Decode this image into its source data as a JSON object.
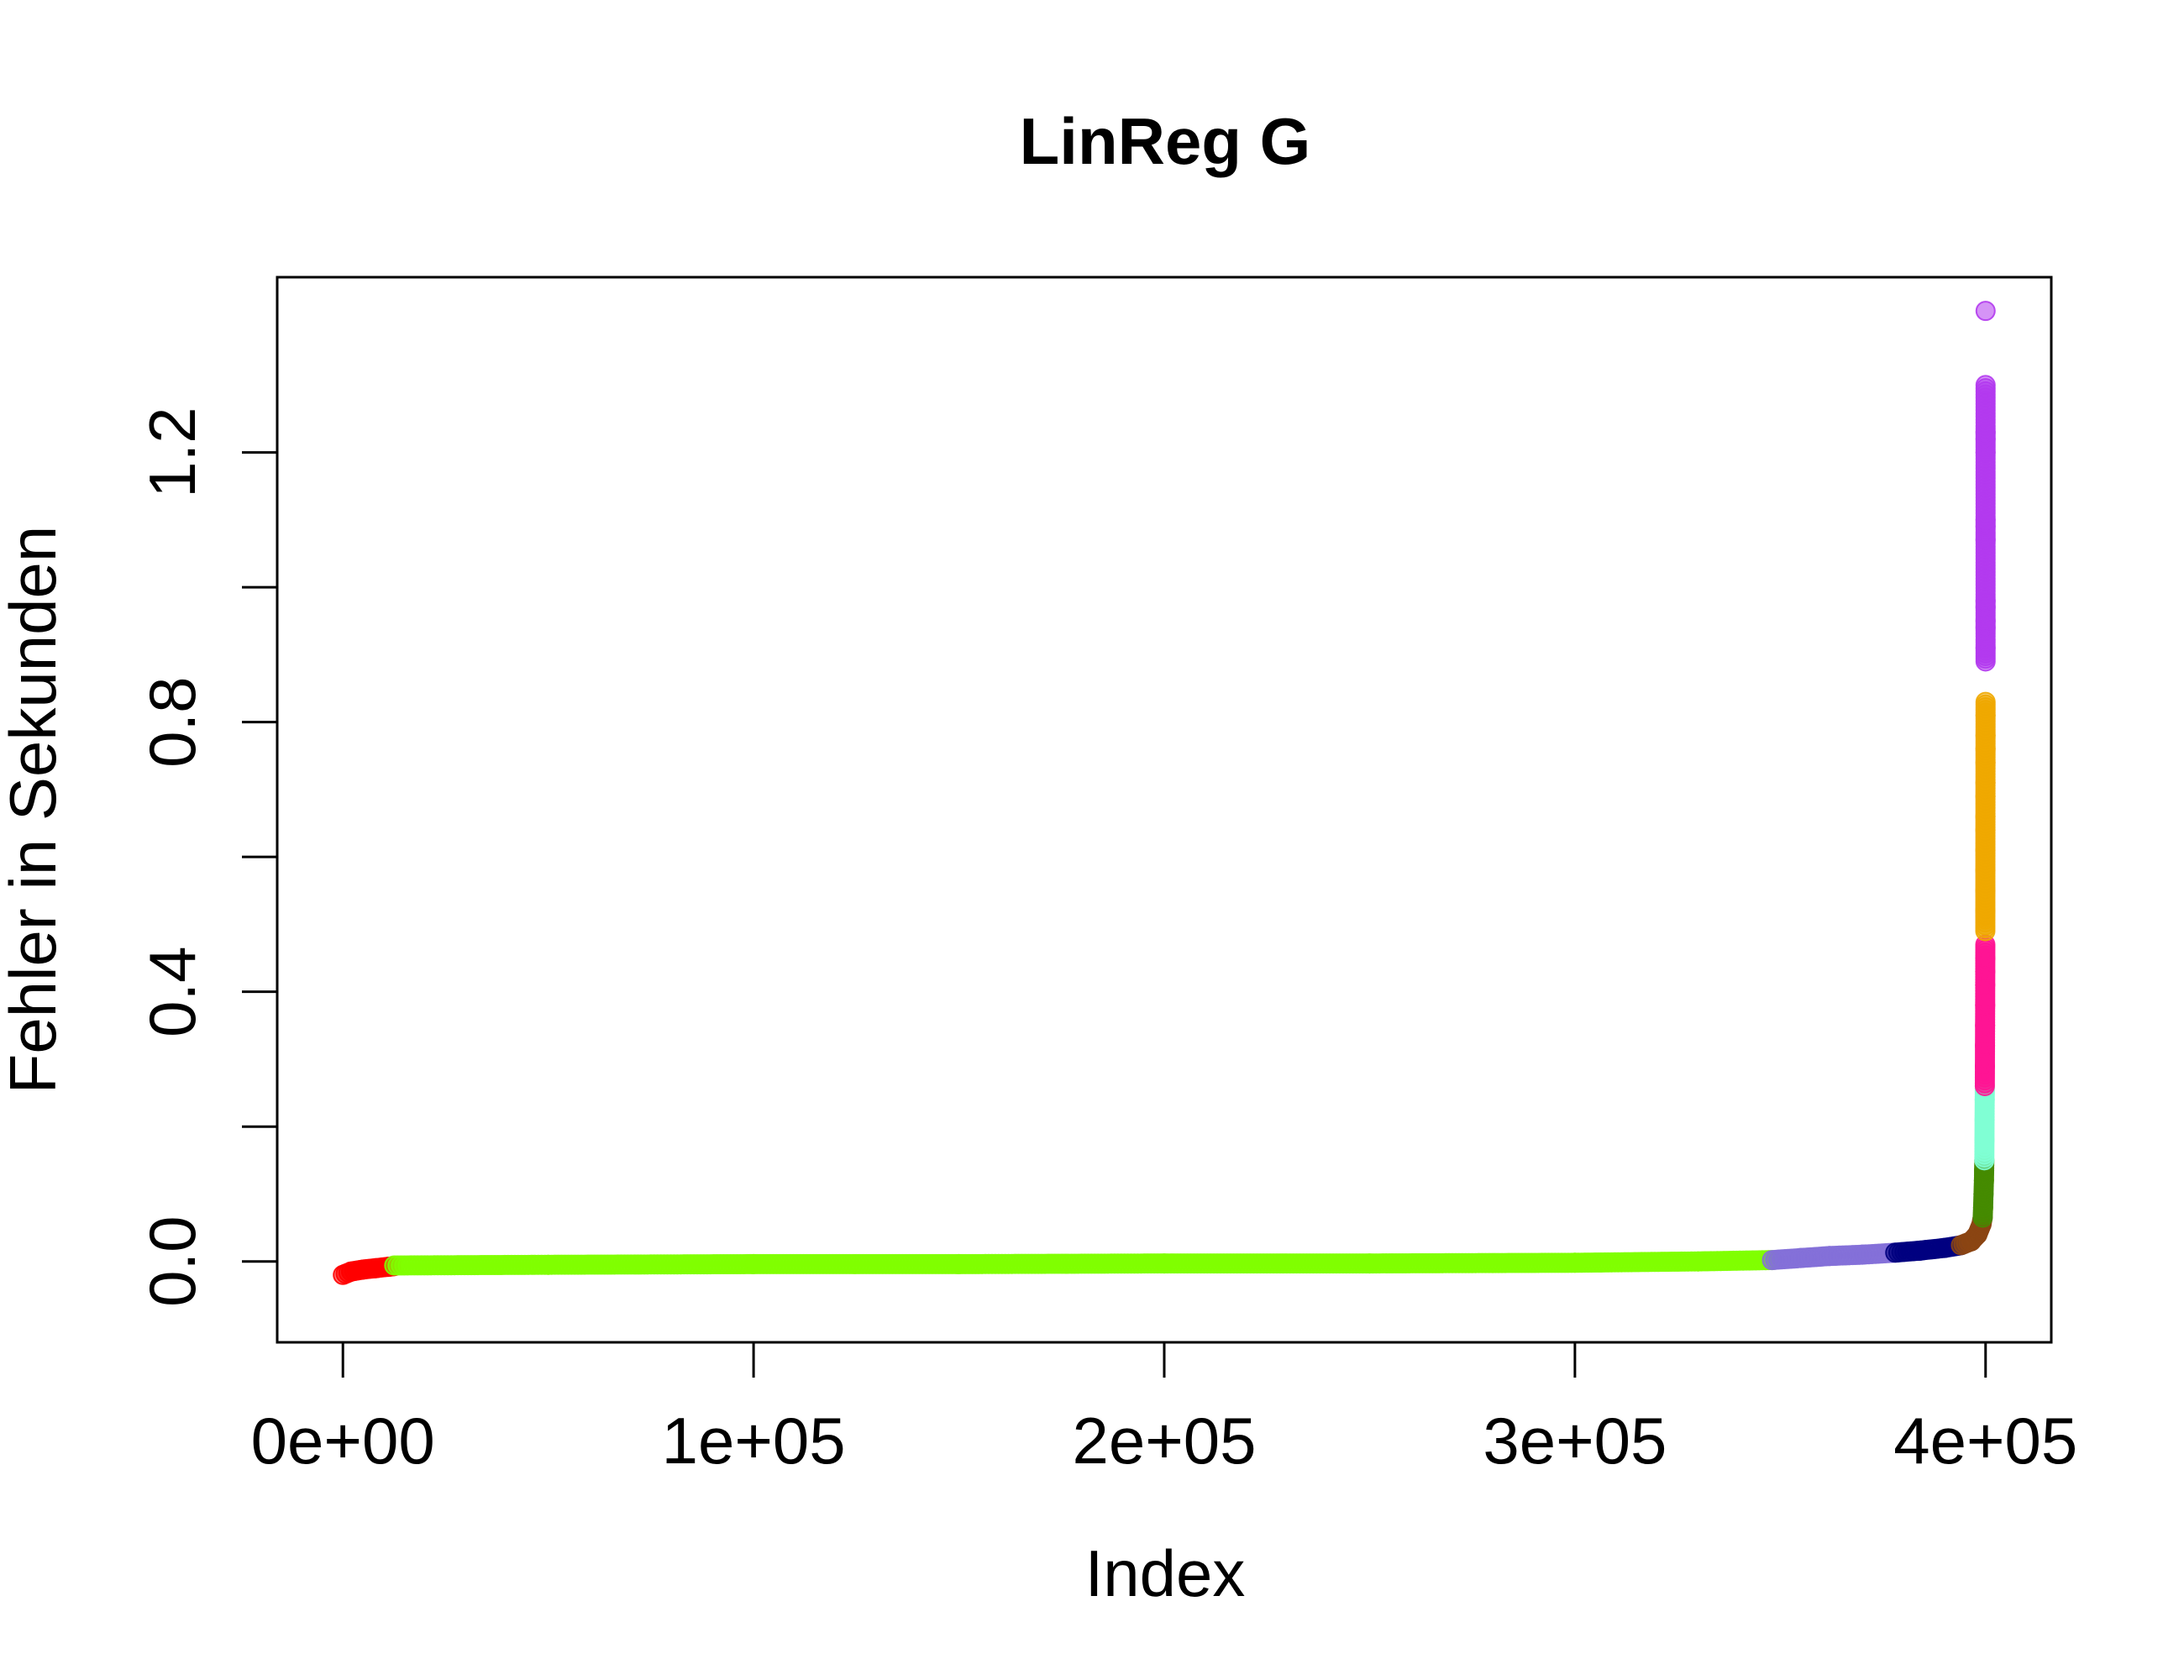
{
  "chart_data": {
    "type": "scatter",
    "title": "LinReg G",
    "xlabel": "Index",
    "ylabel": "Fehler in Sekunden",
    "xlim": [
      -16000,
      416000
    ],
    "ylim": [
      -0.12,
      1.46
    ],
    "xticks": [
      {
        "value": 0,
        "label": "0e+00"
      },
      {
        "value": 100000,
        "label": "1e+05"
      },
      {
        "value": 200000,
        "label": "2e+05"
      },
      {
        "value": 300000,
        "label": "3e+05"
      },
      {
        "value": 400000,
        "label": "4e+05"
      }
    ],
    "yticks": [
      {
        "value": 0.0,
        "label": "0.0"
      },
      {
        "value": 0.2,
        "label": ""
      },
      {
        "value": 0.4,
        "label": "0.4"
      },
      {
        "value": 0.6,
        "label": ""
      },
      {
        "value": 0.8,
        "label": "0.8"
      },
      {
        "value": 1.0,
        "label": ""
      },
      {
        "value": 1.2,
        "label": "1.2"
      }
    ],
    "grid": false,
    "series": [
      {
        "color": "#ff0000",
        "x": [
          0,
          2000,
          5000,
          8000,
          11000,
          12500
        ],
        "y": [
          -0.02,
          -0.015,
          -0.012,
          -0.01,
          -0.008,
          -0.007
        ]
      },
      {
        "color": "#7fff00",
        "x": [
          12500,
          50000,
          100000,
          150000,
          200000,
          250000,
          300000,
          330000,
          348000
        ],
        "y": [
          -0.006,
          -0.005,
          -0.004,
          -0.004,
          -0.003,
          -0.003,
          -0.002,
          0.0,
          0.002
        ]
      },
      {
        "color": "#8470d8",
        "x": [
          348000,
          355000,
          362000,
          370000,
          378000
        ],
        "y": [
          0.002,
          0.005,
          0.008,
          0.01,
          0.013
        ]
      },
      {
        "color": "#000080",
        "x": [
          378000,
          384000,
          390000,
          394000
        ],
        "y": [
          0.013,
          0.016,
          0.02,
          0.024
        ]
      },
      {
        "color": "#8b4513",
        "x": [
          394000,
          396500,
          398000,
          399000,
          399300
        ],
        "y": [
          0.024,
          0.03,
          0.04,
          0.055,
          0.065
        ]
      },
      {
        "color": "#458b00",
        "x": [
          399300,
          399400,
          399500,
          399600,
          399650,
          399700
        ],
        "y": [
          0.065,
          0.08,
          0.1,
          0.12,
          0.135,
          0.15
        ]
      },
      {
        "color": "#7fffd4",
        "x": [
          399700,
          399730,
          399760,
          399790,
          399820
        ],
        "y": [
          0.15,
          0.18,
          0.21,
          0.24,
          0.26
        ]
      },
      {
        "color": "#ff1493",
        "x": [
          399820,
          399840,
          399860,
          399880,
          399900,
          399910,
          399920,
          399930,
          399940
        ],
        "y": [
          0.26,
          0.29,
          0.32,
          0.35,
          0.38,
          0.41,
          0.43,
          0.45,
          0.47
        ]
      },
      {
        "color": "#efa800",
        "x": [
          399940,
          399945,
          399950,
          399955,
          399960,
          399965,
          399970,
          399975,
          399980,
          399985,
          399990,
          399993,
          399996,
          399998
        ],
        "y": [
          0.49,
          0.52,
          0.55,
          0.58,
          0.61,
          0.64,
          0.66,
          0.69,
          0.71,
          0.74,
          0.76,
          0.78,
          0.81,
          0.83
        ]
      },
      {
        "color": "#b23aee",
        "x": [
          399998,
          399998.5,
          399999,
          399999.2,
          399999.4,
          399999.5,
          399999.6,
          399999.7,
          399999.8,
          399999.85,
          399999.9,
          399999.95,
          400000
        ],
        "y": [
          0.89,
          0.91,
          0.94,
          0.95,
          0.97,
          0.98,
          1.07,
          1.09,
          1.1,
          1.2,
          1.22,
          1.23,
          1.3
        ]
      },
      {
        "color": "#b23aee",
        "x": [
          400000
        ],
        "y": [
          1.41
        ]
      }
    ]
  }
}
